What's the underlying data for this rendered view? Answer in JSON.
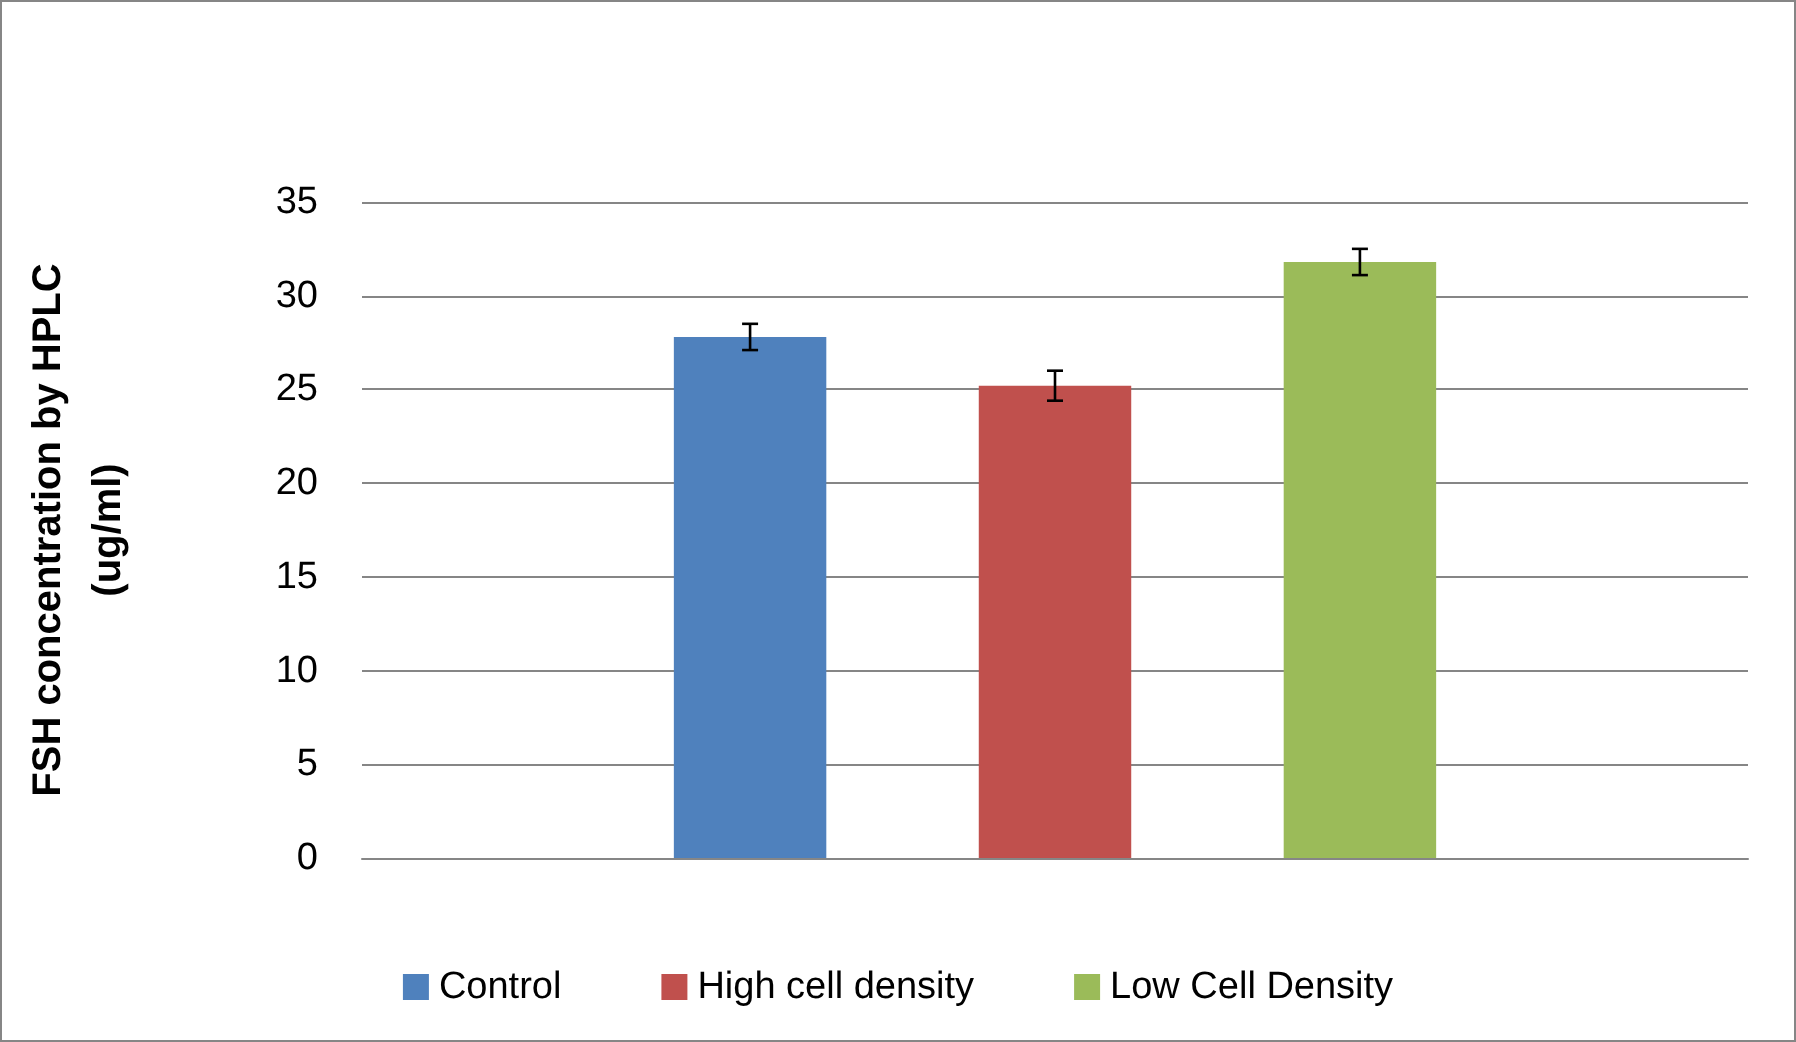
{
  "chart_data": {
    "type": "bar",
    "ylabel": "FSH concentration by HPLC\n(ug/ml)",
    "categories": [
      null
    ],
    "series": [
      {
        "name": "Control",
        "color": "#4f81bd",
        "values": [
          27.8
        ],
        "errors": [
          0.7
        ]
      },
      {
        "name": "High cell density",
        "color": "#c0504d",
        "values": [
          25.2
        ],
        "errors": [
          0.8
        ]
      },
      {
        "name": "Low Cell Density",
        "color": "#9bbb59",
        "values": [
          31.8
        ],
        "errors": [
          0.7
        ]
      }
    ],
    "ylim": [
      0,
      35
    ],
    "yticks": [
      0,
      5,
      10,
      15,
      20,
      25,
      30,
      35
    ],
    "grid": "y",
    "legend": "bottom"
  }
}
